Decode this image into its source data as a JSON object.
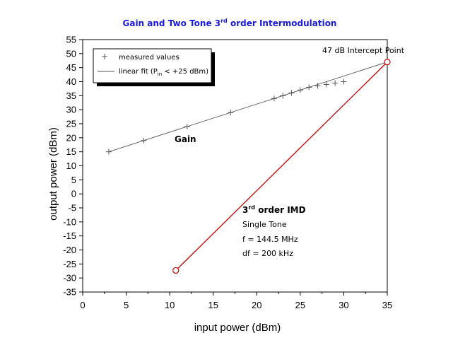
{
  "chart_data": {
    "type": "line",
    "title": {
      "pre": "Gain and Two Tone 3",
      "sup": "rd",
      "post": " order Intermodulation"
    },
    "xlabel": "input power (dBm)",
    "ylabel": "output power (dBm)",
    "xlim": [
      0,
      35
    ],
    "ylim": [
      -35,
      55
    ],
    "xticks": [
      "0",
      "5",
      "10",
      "15",
      "20",
      "25",
      "30",
      "35"
    ],
    "yticks": [
      "-35",
      "-30",
      "-25",
      "-20",
      "-15",
      "-10",
      "-5",
      "0",
      "5",
      "10",
      "15",
      "20",
      "25",
      "30",
      "35",
      "40",
      "45",
      "50",
      "55"
    ],
    "grid": false,
    "legend_position": "top-left",
    "series": [
      {
        "name": "measured values",
        "marker": "plus",
        "color": "#555555",
        "x": [
          3,
          7,
          12,
          17,
          22,
          23,
          24,
          25,
          26,
          27,
          28,
          29,
          30
        ],
        "y": [
          15,
          19,
          24,
          29,
          34,
          35,
          36,
          37,
          38,
          38.5,
          39,
          39.5,
          40
        ]
      },
      {
        "name_pre": "linear fit (P",
        "name_sub": "in",
        "name_post": " < +25 dBm)",
        "style": "line",
        "color": "#555555",
        "x": [
          3,
          35
        ],
        "y": [
          15,
          47
        ]
      },
      {
        "style": "line",
        "color": "#cc0000",
        "x": [
          10.7,
          35
        ],
        "y": [
          -27.3,
          47
        ]
      }
    ],
    "circle_markers": {
      "color": "#cc0000",
      "points": [
        {
          "x": 10.7,
          "y": -27.3
        },
        {
          "x": 35,
          "y": 47
        }
      ]
    },
    "annotations": {
      "intercept": "47 dB Intercept Point",
      "gain": "Gain",
      "imd_pre": "3",
      "imd_sup": "rd",
      "imd_post": " order IMD",
      "single_tone": "Single Tone",
      "frequency": "f = 144.5 MHz",
      "df": "df = 200 kHz"
    }
  }
}
